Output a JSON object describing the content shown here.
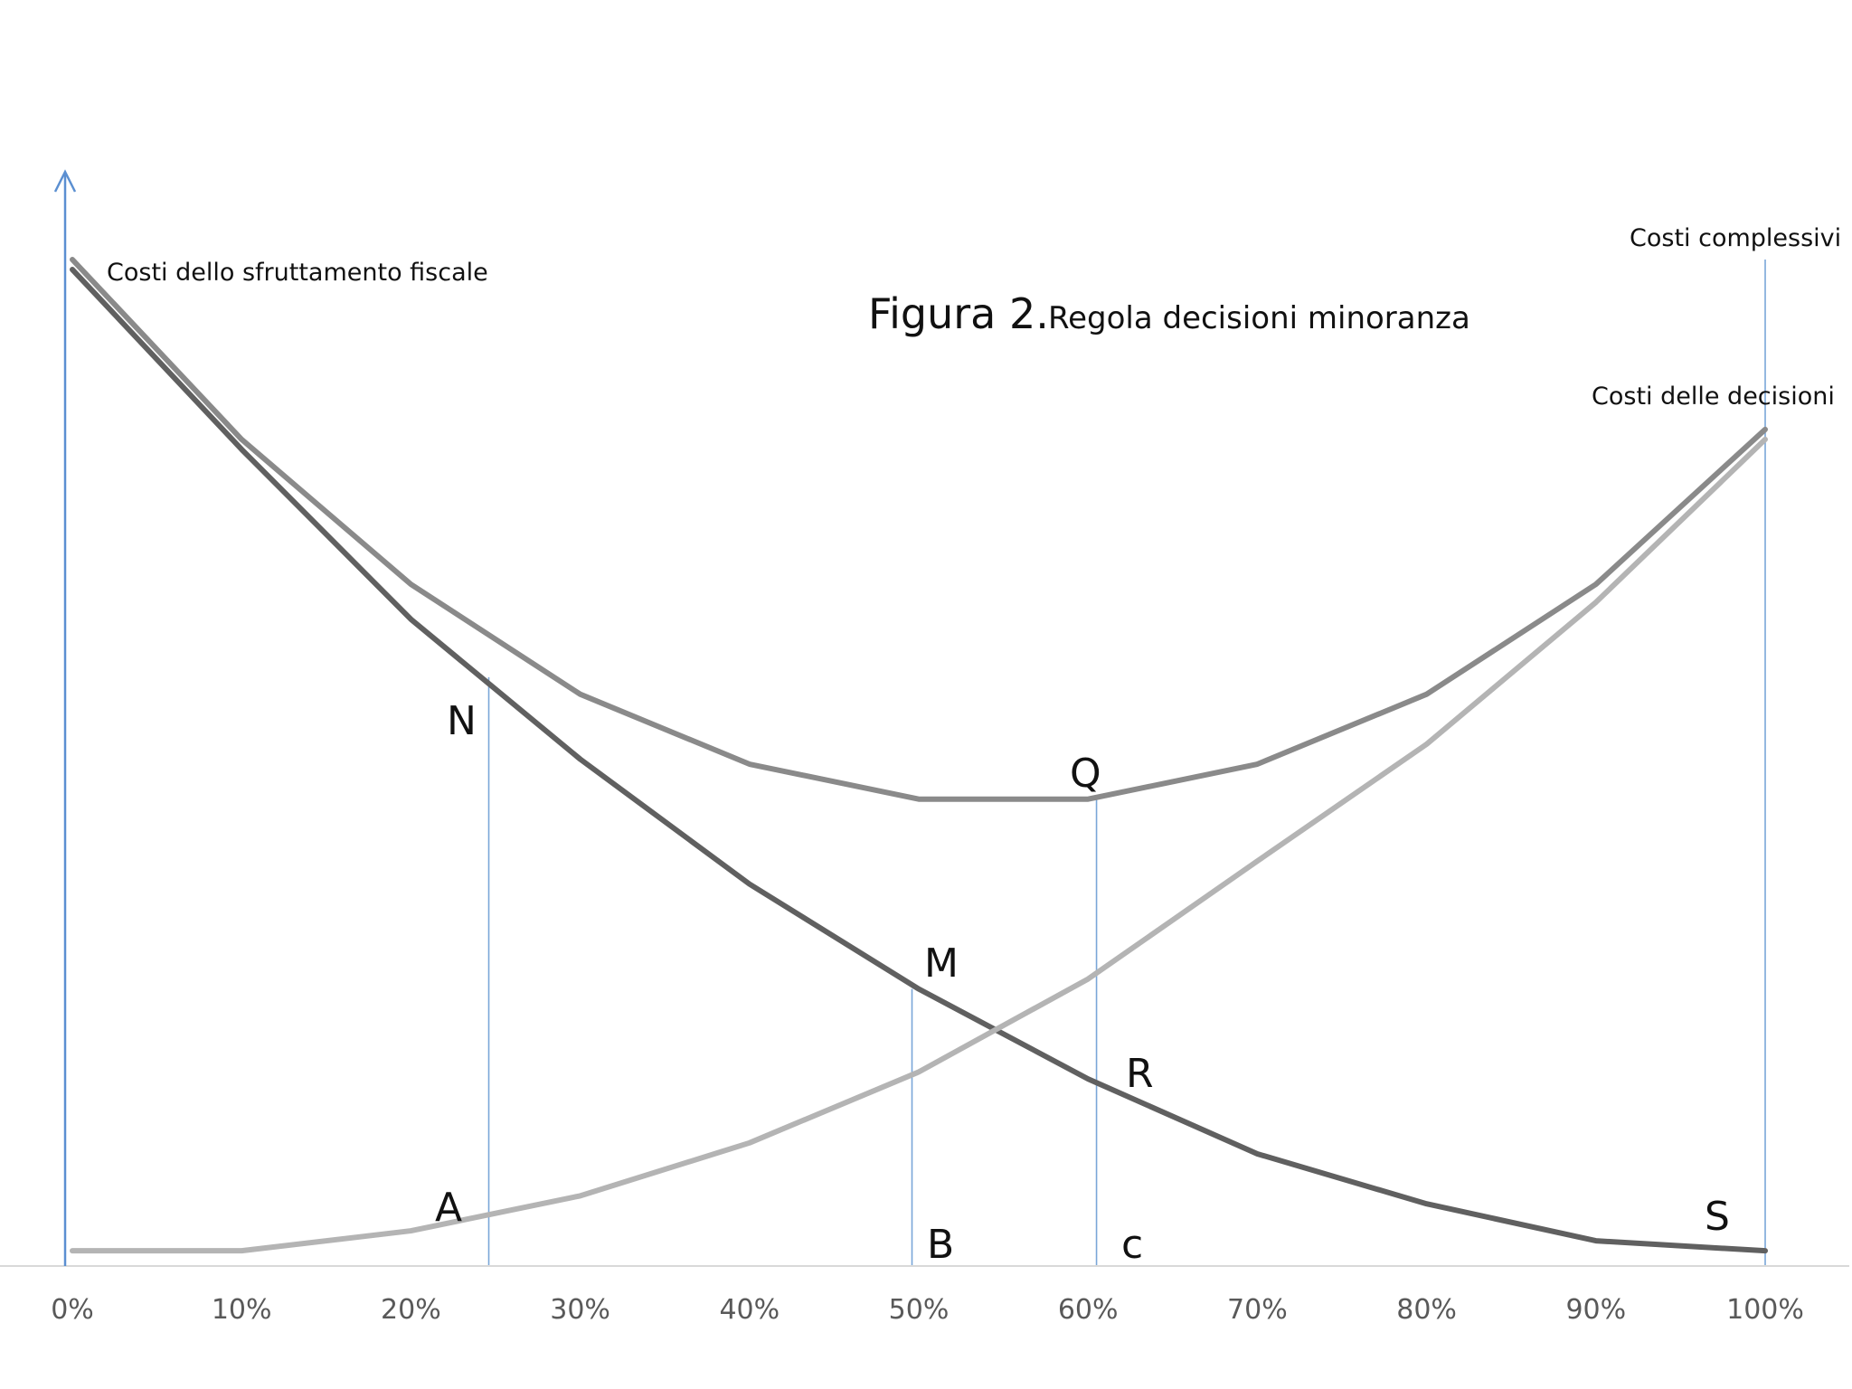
{
  "chart_data": {
    "type": "line",
    "title": "Figura 2.",
    "subtitle": "Regola decisioni minoranza",
    "x": [
      "0%",
      "10%",
      "20%",
      "30%",
      "40%",
      "50%",
      "60%",
      "70%",
      "80%",
      "90%",
      "100%"
    ],
    "ylim": [
      0,
      100
    ],
    "grid": false,
    "legend": "none",
    "series": [
      {
        "name": "Costi dello sfruttamento fiscale",
        "color": "#606060",
        "values": [
          99,
          81,
          64,
          50,
          37.5,
          27,
          18,
          10.5,
          5.5,
          1.8,
          0.8
        ]
      },
      {
        "name": "Costi complessivi",
        "color": "#8a8a8a",
        "values": [
          100,
          82,
          67.5,
          56.5,
          49.5,
          46,
          46,
          49.5,
          56.5,
          67.5,
          83
        ]
      },
      {
        "name": "Costi delle decisioni",
        "color": "#b4b4b4",
        "values": [
          0.8,
          0.8,
          2.8,
          6.3,
          11.6,
          18.7,
          28,
          39.8,
          51.5,
          65.7,
          82
        ]
      }
    ],
    "guides": [
      {
        "label": "N",
        "x_pct": 24.6,
        "y_value": 58.2
      },
      {
        "label": "M",
        "x_pct": 49.6,
        "y_value": 27
      },
      {
        "label": "Q",
        "x_pct": 60.5,
        "y_value": 46
      },
      {
        "label": "Costi complessivi",
        "x_pct": 100,
        "y_value": 100
      }
    ],
    "point_labels": [
      "N",
      "A",
      "M",
      "B",
      "Q",
      "R",
      "c",
      "S"
    ],
    "x_tick_labels": [
      "0%",
      "10%",
      "20%",
      "30%",
      "40%",
      "50%",
      "60%",
      "70%",
      "80%",
      "90%",
      "100%"
    ]
  },
  "labels": {
    "title_main": "Figura 2.",
    "title_sub": "Regola decisioni minoranza",
    "series_fiscale": "Costi dello sfruttamento fiscale",
    "series_complessivi": "Costi complessivi",
    "series_decisioni": "Costi delle decisioni",
    "pt_N": "N",
    "pt_A": "A",
    "pt_M": "M",
    "pt_B": "B",
    "pt_Q": "Q",
    "pt_R": "R",
    "pt_c": "c",
    "pt_S": "S"
  },
  "colors": {
    "axis_blue": "#5b8fd1",
    "guide_blue": "#7aa6d8",
    "baseline": "#d9d9d9"
  }
}
